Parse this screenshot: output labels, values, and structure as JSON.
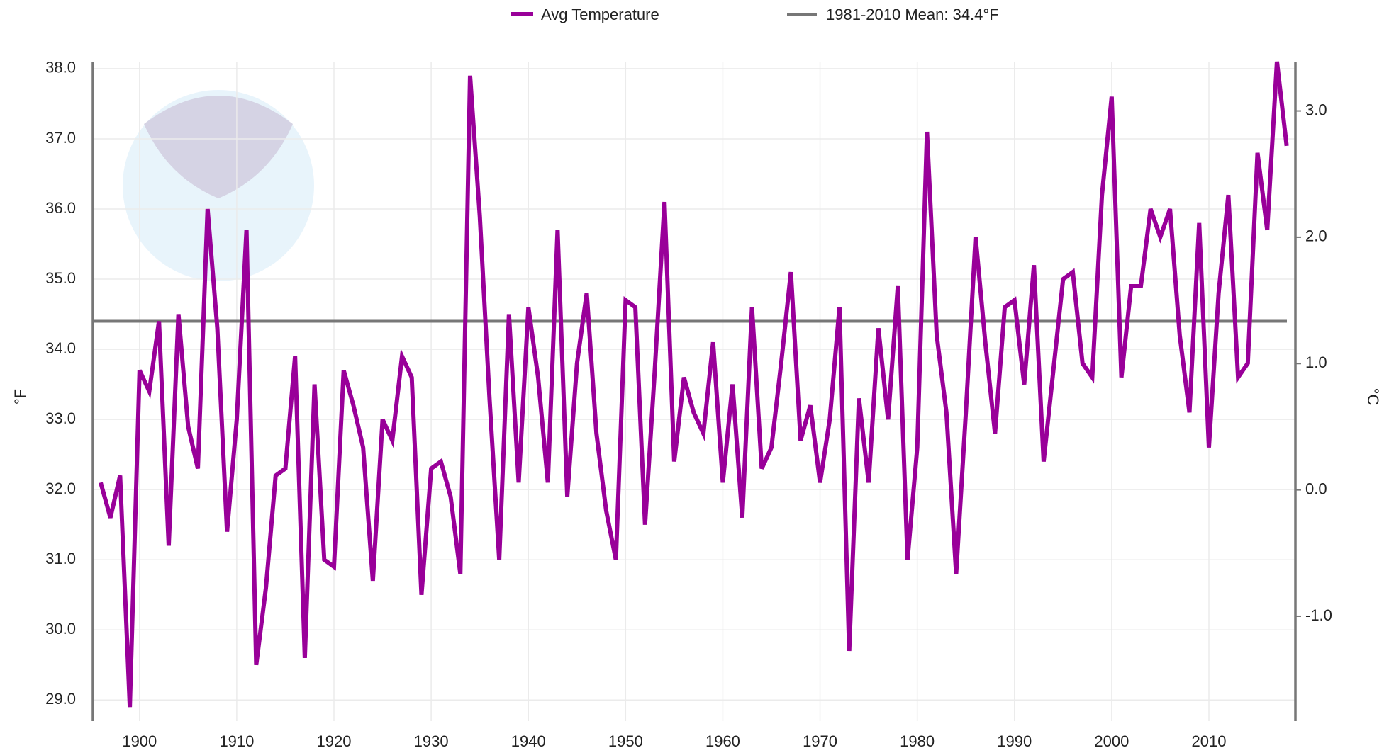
{
  "chart_data": {
    "type": "line",
    "x": [
      1896,
      1897,
      1898,
      1899,
      1900,
      1901,
      1902,
      1903,
      1904,
      1905,
      1906,
      1907,
      1908,
      1909,
      1910,
      1911,
      1912,
      1913,
      1914,
      1915,
      1916,
      1917,
      1918,
      1919,
      1920,
      1921,
      1922,
      1923,
      1924,
      1925,
      1926,
      1927,
      1928,
      1929,
      1930,
      1931,
      1932,
      1933,
      1934,
      1935,
      1936,
      1937,
      1938,
      1939,
      1940,
      1941,
      1942,
      1943,
      1944,
      1945,
      1946,
      1947,
      1948,
      1949,
      1950,
      1951,
      1952,
      1953,
      1954,
      1955,
      1956,
      1957,
      1958,
      1959,
      1960,
      1961,
      1962,
      1963,
      1964,
      1965,
      1966,
      1967,
      1968,
      1969,
      1970,
      1971,
      1972,
      1973,
      1974,
      1975,
      1976,
      1977,
      1978,
      1979,
      1980,
      1981,
      1982,
      1983,
      1984,
      1985,
      1986,
      1987,
      1988,
      1989,
      1990,
      1991,
      1992,
      1993,
      1994,
      1995,
      1996,
      1997,
      1998,
      1999,
      2000,
      2001,
      2002,
      2003,
      2004,
      2005,
      2006,
      2007,
      2008,
      2009,
      2010,
      2011,
      2012,
      2013,
      2014,
      2015,
      2016,
      2017,
      2018
    ],
    "series": [
      {
        "name": "Avg Temperature",
        "color": "#990099",
        "values": [
          32.1,
          31.6,
          32.2,
          28.9,
          33.7,
          33.4,
          34.4,
          31.2,
          34.5,
          32.9,
          32.3,
          36.0,
          34.3,
          31.4,
          33.0,
          35.7,
          29.5,
          30.6,
          32.2,
          32.3,
          33.9,
          29.6,
          33.5,
          31.0,
          30.9,
          33.7,
          33.2,
          32.6,
          30.7,
          33.0,
          32.7,
          33.9,
          33.6,
          30.5,
          32.3,
          32.4,
          31.9,
          30.8,
          37.9,
          35.9,
          33.3,
          31.0,
          34.5,
          32.1,
          34.6,
          33.6,
          32.1,
          35.7,
          31.9,
          33.8,
          34.8,
          32.8,
          31.7,
          31.0,
          34.7,
          34.6,
          31.5,
          33.7,
          36.1,
          32.4,
          33.6,
          33.1,
          32.8,
          34.1,
          32.1,
          33.5,
          31.6,
          34.6,
          32.3,
          32.6,
          33.8,
          35.1,
          32.7,
          33.2,
          32.1,
          33.0,
          34.6,
          29.7,
          33.3,
          32.1,
          34.3,
          33.0,
          34.9,
          31.0,
          32.6,
          37.1,
          34.2,
          33.1,
          30.8,
          33.1,
          35.6,
          34.1,
          32.8,
          34.6,
          34.7,
          33.5,
          35.2,
          32.4,
          33.7,
          35.0,
          35.1,
          33.8,
          33.6,
          36.2,
          37.6,
          33.6,
          34.9,
          34.9,
          36.0,
          35.6,
          36.0,
          34.2,
          33.1,
          35.8,
          32.6,
          34.8,
          36.2,
          33.6,
          33.8,
          36.8,
          35.7,
          38.1,
          36.9
        ]
      }
    ],
    "reference_line": {
      "name": "1981-2010 Mean: 34.4°F",
      "value": 34.4,
      "color": "#777777"
    },
    "xlim": [
      1895.2,
      2018.9
    ],
    "xticks": [
      1900,
      1910,
      1920,
      1930,
      1940,
      1950,
      1960,
      1970,
      1980,
      1990,
      2000,
      2010
    ],
    "ylim": [
      28.7,
      38.1
    ],
    "yticks": [
      {
        "value": 29,
        "label": "29.0"
      },
      {
        "value": 30,
        "label": "30.0"
      },
      {
        "value": 31,
        "label": "31.0"
      },
      {
        "value": 32,
        "label": "32.0"
      },
      {
        "value": 33,
        "label": "33.0"
      },
      {
        "value": 34,
        "label": "34.0"
      },
      {
        "value": 35,
        "label": "35.0"
      },
      {
        "value": 36,
        "label": "36.0"
      },
      {
        "value": 37,
        "label": "37.0"
      },
      {
        "value": 38,
        "label": "38.0"
      }
    ],
    "y2lim": [
      -1.83,
      3.39
    ],
    "y2ticks": [
      {
        "value": -1,
        "label": "-1.0"
      },
      {
        "value": 0,
        "label": "0.0"
      },
      {
        "value": 1,
        "label": "1.0"
      },
      {
        "value": 2,
        "label": "2.0"
      },
      {
        "value": 3,
        "label": "3.0"
      }
    ],
    "ylabel": "°F",
    "y2label": "°C",
    "grid": true
  }
}
